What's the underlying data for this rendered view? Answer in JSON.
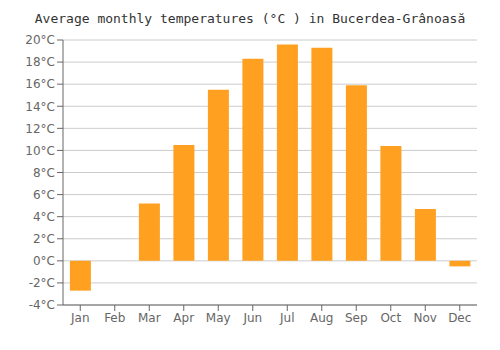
{
  "chart_data": {
    "type": "bar",
    "title": "Average monthly temperatures (°C ) in Bucerdea-Grânoasă",
    "categories": [
      "Jan",
      "Feb",
      "Mar",
      "Apr",
      "May",
      "Jun",
      "Jul",
      "Aug",
      "Sep",
      "Oct",
      "Nov",
      "Dec"
    ],
    "values": [
      -2.7,
      0.0,
      5.2,
      10.5,
      15.5,
      18.3,
      19.6,
      19.3,
      15.9,
      10.4,
      4.7,
      -0.5
    ],
    "color": "#FFA020",
    "ylim": [
      -4,
      20
    ],
    "yticks": [
      {
        "value": -4,
        "label": "-4°C"
      },
      {
        "value": -2,
        "label": "-2°C"
      },
      {
        "value": 0,
        "label": "0°C"
      },
      {
        "value": 2,
        "label": "2°C"
      },
      {
        "value": 4,
        "label": "4°C"
      },
      {
        "value": 6,
        "label": "6°C"
      },
      {
        "value": 8,
        "label": "8°C"
      },
      {
        "value": 10,
        "label": "10°C"
      },
      {
        "value": 12,
        "label": "12°C"
      },
      {
        "value": 14,
        "label": "14°C"
      },
      {
        "value": 16,
        "label": "16°C"
      },
      {
        "value": 18,
        "label": "18°C"
      },
      {
        "value": 20,
        "label": "20°C"
      }
    ],
    "grid": true
  }
}
